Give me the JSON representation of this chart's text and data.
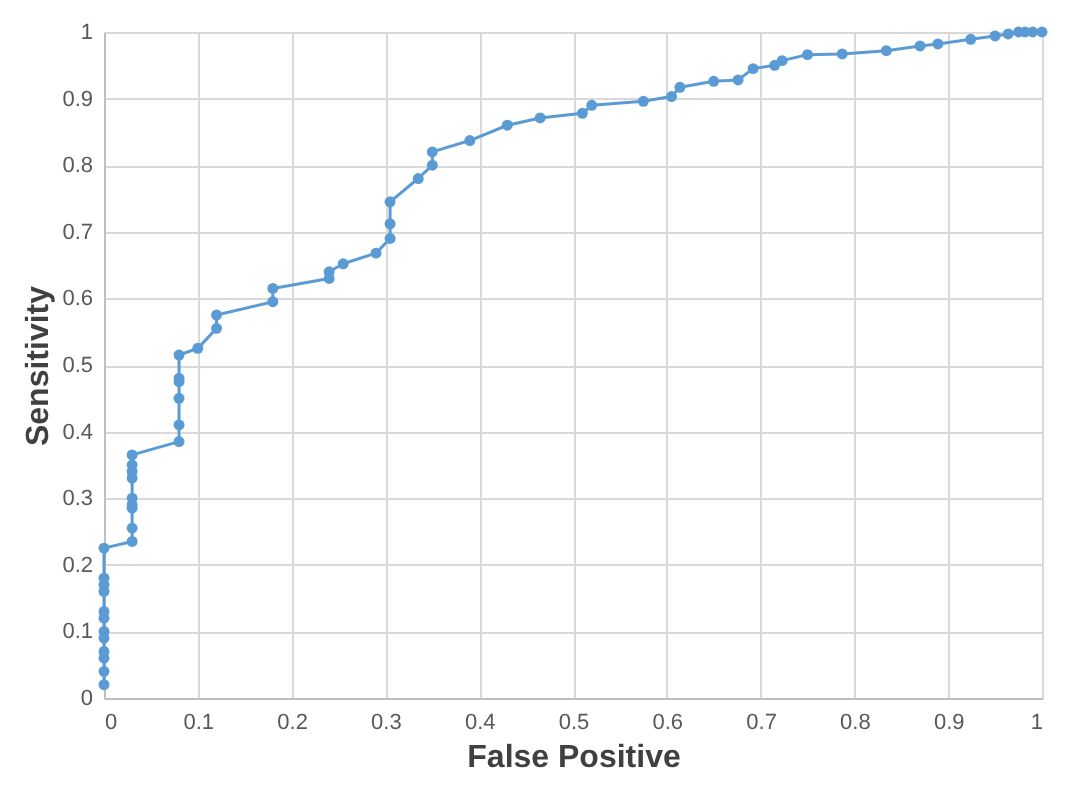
{
  "chart_data": {
    "type": "line",
    "xlabel": "False Positive",
    "ylabel": "Sensitivity",
    "marker": "circle",
    "line_style": "solid",
    "grid": true,
    "legend": false,
    "xlim": [
      0,
      1
    ],
    "ylim": [
      0,
      1
    ],
    "xticks": [
      0,
      0.1,
      0.2,
      0.3,
      0.4,
      0.5,
      0.6,
      0.7,
      0.8,
      0.9,
      1
    ],
    "yticks": [
      0,
      0.1,
      0.2,
      0.3,
      0.4,
      0.5,
      0.6,
      0.7,
      0.8,
      0.9,
      1
    ],
    "series": [
      {
        "color": "#5b9bd5",
        "x": [
          0,
          0,
          0,
          0,
          0,
          0,
          0,
          0,
          0,
          0,
          0,
          0,
          0.03,
          0.03,
          0.03,
          0.03,
          0.03,
          0.03,
          0.03,
          0.03,
          0.03,
          0.08,
          0.08,
          0.08,
          0.08,
          0.08,
          0.08,
          0.1,
          0.12,
          0.12,
          0.18,
          0.18,
          0.24,
          0.24,
          0.255,
          0.29,
          0.305,
          0.305,
          0.305,
          0.335,
          0.35,
          0.35,
          0.39,
          0.43,
          0.465,
          0.51,
          0.52,
          0.575,
          0.605,
          0.614,
          0.65,
          0.676,
          0.692,
          0.715,
          0.723,
          0.75,
          0.787,
          0.834,
          0.87,
          0.889,
          0.924,
          0.95,
          0.964,
          0.975,
          0.982,
          0.99,
          1
        ],
        "values": [
          0.02,
          0.04,
          0.06,
          0.07,
          0.09,
          0.1,
          0.12,
          0.13,
          0.16,
          0.17,
          0.18,
          0.225,
          0.235,
          0.255,
          0.285,
          0.29,
          0.3,
          0.33,
          0.34,
          0.35,
          0.365,
          0.385,
          0.41,
          0.45,
          0.475,
          0.48,
          0.515,
          0.525,
          0.555,
          0.575,
          0.595,
          0.615,
          0.63,
          0.64,
          0.652,
          0.668,
          0.69,
          0.712,
          0.745,
          0.78,
          0.8,
          0.82,
          0.837,
          0.86,
          0.871,
          0.878,
          0.89,
          0.896,
          0.903,
          0.917,
          0.926,
          0.928,
          0.945,
          0.95,
          0.957,
          0.966,
          0.967,
          0.972,
          0.979,
          0.982,
          0.989,
          0.994,
          0.997,
          1,
          1,
          1,
          1
        ]
      }
    ]
  }
}
